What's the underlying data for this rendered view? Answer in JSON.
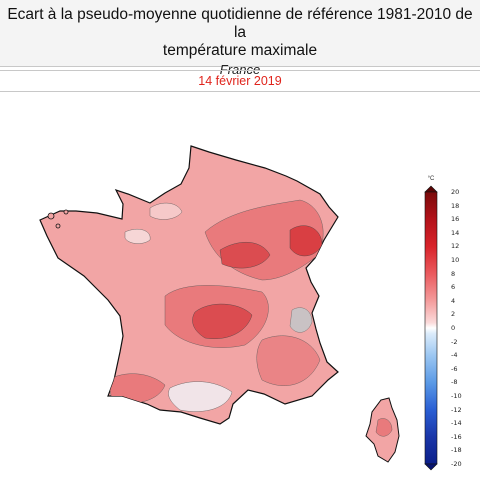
{
  "header": {
    "title": "Ecart à la pseudo-moyenne quotidienne de référence 1981-2010 de la\ntempérature maximale",
    "subtitle": "France"
  },
  "date_bar": {
    "date": "14 février 2019"
  },
  "map": {
    "region": "France",
    "inset": "Corse",
    "dominant_color": "#f2a3a3",
    "hot_zone_color": "#dc4a4e",
    "cool_zone_color": "#f1e6e9"
  },
  "legend": {
    "unit": "°C",
    "ticks": [
      "20",
      "18",
      "16",
      "14",
      "12",
      "10",
      "8",
      "6",
      "4",
      "2",
      "0",
      "-2",
      "-4",
      "-6",
      "-8",
      "-10",
      "-12",
      "-14",
      "-16",
      "-18",
      "-20"
    ],
    "max_color": "#7a0a0a",
    "min_color": "#0b1f8a"
  }
}
